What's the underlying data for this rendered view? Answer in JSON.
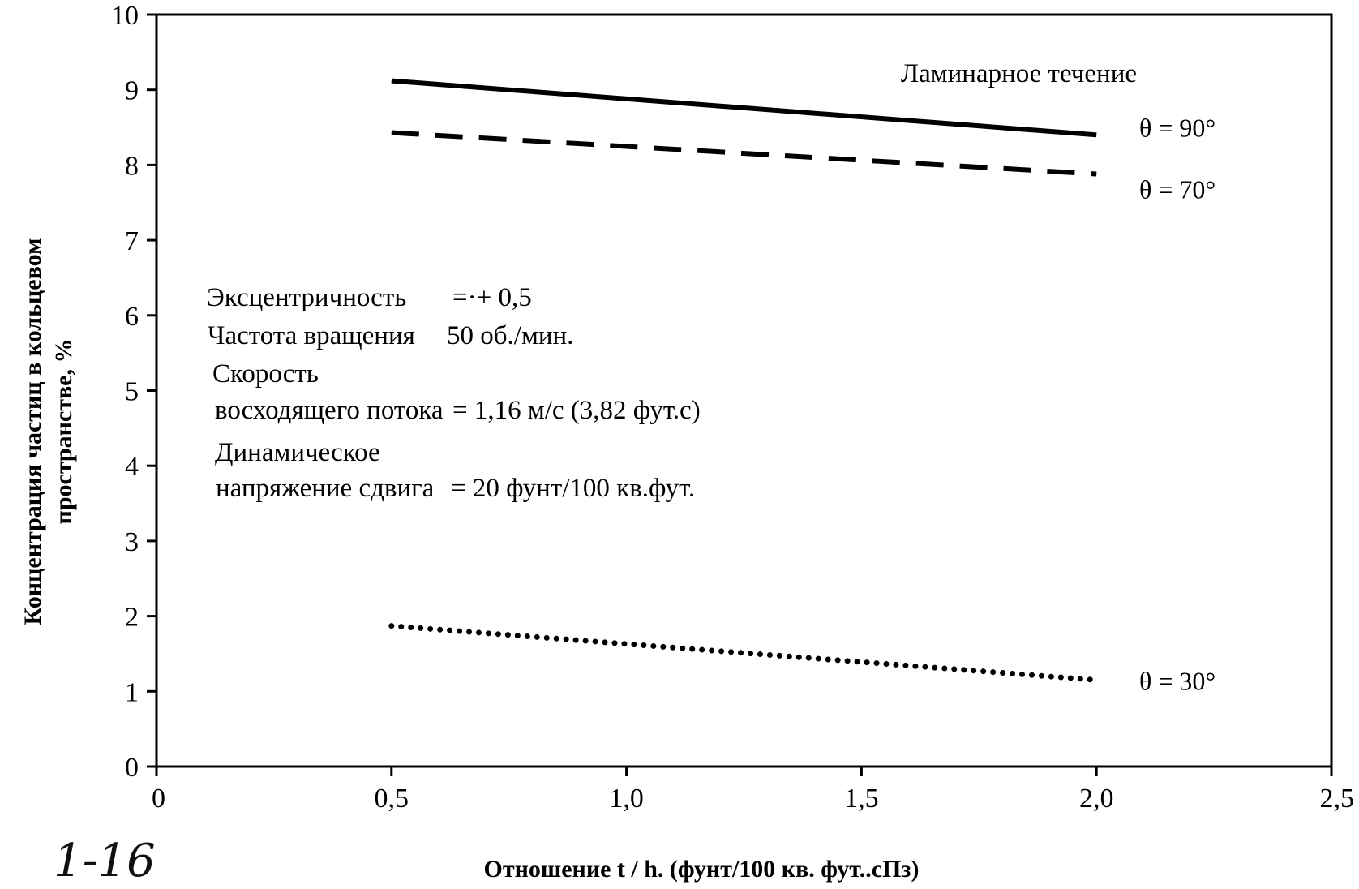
{
  "chart_data": {
    "type": "line",
    "xlabel": "Отношение t  / h.  (фунт/100 кв. фут..сПз)",
    "ylabel_lines": [
      "Концентрация  частиц в кольцевом",
      "пространстве, %"
    ],
    "xlim": [
      0,
      2.5
    ],
    "ylim": [
      0,
      10
    ],
    "x_ticks": [
      0,
      0.5,
      1.0,
      1.5,
      2.0,
      2.5
    ],
    "x_tick_labels": [
      "0",
      "0,5",
      "1,0",
      "1,5",
      "2,0",
      "2,5"
    ],
    "y_ticks": [
      0,
      1,
      2,
      3,
      4,
      5,
      6,
      7,
      8,
      9,
      10
    ],
    "y_tick_labels": [
      "0",
      "1",
      "2",
      "3",
      "4",
      "5",
      "6",
      "7",
      "8",
      "9",
      "10"
    ],
    "grid": false,
    "series": [
      {
        "name": "θ = 90°",
        "style": "solid",
        "x": [
          0.5,
          2.0
        ],
        "y": [
          9.12,
          8.4
        ]
      },
      {
        "name": "θ = 70°",
        "style": "dashed",
        "x": [
          0.5,
          2.0
        ],
        "y": [
          8.43,
          7.88
        ]
      },
      {
        "name": "θ = 30°",
        "style": "dotted",
        "x": [
          0.5,
          2.0
        ],
        "y": [
          1.87,
          1.15
        ]
      }
    ],
    "annotations": {
      "flow_regime": "Ламинарное течение",
      "parameters": [
        {
          "label": "Эксцентричность",
          "value": "=·+ 0,5"
        },
        {
          "label": "Частота вращения",
          "value": "50 об./мин."
        },
        {
          "label": "Скорость",
          "value": ""
        },
        {
          "label": "восходящего потока",
          "value": "= 1,16 м/с (3,82 фут.с)"
        },
        {
          "label": "Динамическое",
          "value": ""
        },
        {
          "label": "напряжение сдвига",
          "value": "= 20 фунт/100 кв.фут."
        }
      ]
    },
    "handwritten_note": "1-16"
  }
}
